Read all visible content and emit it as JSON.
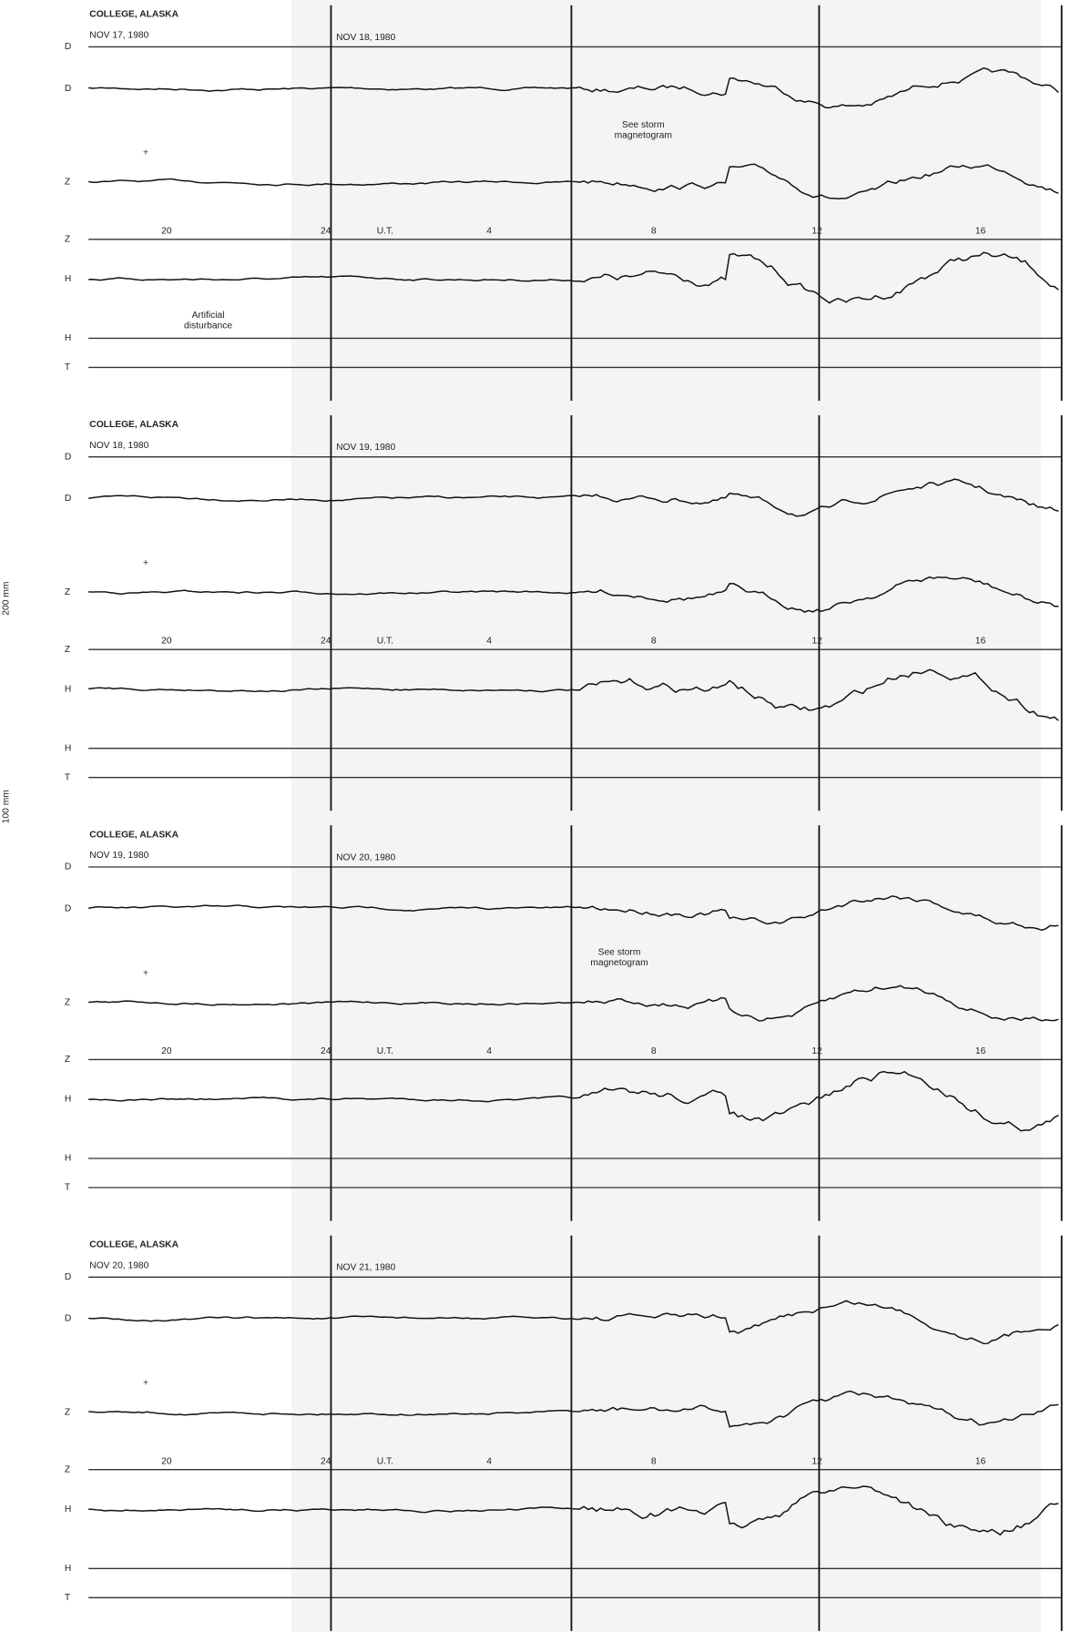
{
  "panels": [
    {
      "station": "COLLEGE, ALASKA",
      "date_start": "NOV 17, 1980",
      "date_end": "NOV 18, 1980",
      "channels": [
        "D",
        "D",
        "Z",
        "Z",
        "H",
        "H",
        "T"
      ],
      "hours": [
        "20",
        "24",
        "U.T.",
        "4",
        "8",
        "12",
        "16"
      ],
      "notes": [
        {
          "lines": [
            "See storm",
            "magnetogram"
          ]
        },
        {
          "lines": [
            "Artificial",
            "disturbance"
          ]
        }
      ]
    },
    {
      "station": "COLLEGE, ALASKA",
      "date_start": "NOV 18, 1980",
      "date_end": "NOV 19, 1980",
      "channels": [
        "D",
        "D",
        "Z",
        "Z",
        "H",
        "H",
        "T"
      ],
      "hours": [
        "20",
        "24",
        "U.T.",
        "4",
        "8",
        "12",
        "16"
      ],
      "notes": []
    },
    {
      "station": "COLLEGE, ALASKA",
      "date_start": "NOV 19, 1980",
      "date_end": "NOV 20, 1980",
      "channels": [
        "D",
        "D",
        "Z",
        "Z",
        "H",
        "H",
        "T"
      ],
      "hours": [
        "20",
        "24",
        "U.T.",
        "4",
        "8",
        "12",
        "16"
      ],
      "notes": [
        {
          "lines": [
            "See storm",
            "magnetogram"
          ]
        }
      ]
    },
    {
      "station": "COLLEGE, ALASKA",
      "date_start": "NOV 20, 1980",
      "date_end": "NOV 21, 1980",
      "channels": [
        "D",
        "D",
        "Z",
        "Z",
        "H",
        "H",
        "T"
      ],
      "hours": [
        "20",
        "24",
        "U.T.",
        "4",
        "8",
        "12",
        "16"
      ],
      "notes": []
    }
  ],
  "side_labels": [
    "200 mm",
    "100 mm"
  ]
}
